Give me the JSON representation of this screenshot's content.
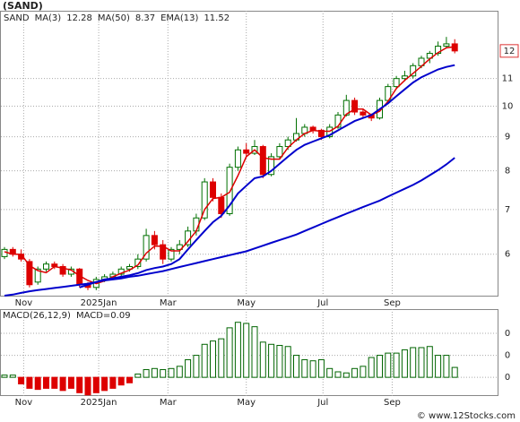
{
  "title": "(SAND)",
  "footer": "© www.12Stocks.com",
  "chart_data": [
    {
      "type": "candlestick",
      "log_scale": true,
      "grid": true,
      "ylim": [
        5.2,
        13.9
      ],
      "yticks": [
        6,
        7,
        8,
        9,
        10,
        11
      ],
      "price_tag": {
        "value": 12.1,
        "label": "12"
      },
      "categories": [
        null,
        null,
        null,
        null,
        null,
        null,
        null,
        null,
        null,
        null,
        null,
        null,
        null,
        null,
        null,
        null,
        null,
        null,
        null,
        null,
        null,
        null,
        null,
        null,
        null,
        null,
        null,
        null,
        null,
        null,
        null,
        null,
        null,
        null,
        null,
        null,
        null,
        null,
        null,
        null,
        null,
        null,
        null,
        null,
        null,
        null,
        null,
        null,
        null,
        null,
        null,
        null,
        null,
        null,
        null
      ],
      "xticks": [
        {
          "value": 2.3,
          "label": "Nov"
        },
        {
          "value": 11.3,
          "label": "2025Jan"
        },
        {
          "value": 19.6,
          "label": "Mar"
        },
        {
          "value": 29.0,
          "label": "May"
        },
        {
          "value": 38.2,
          "label": "Jul"
        },
        {
          "value": 46.5,
          "label": "Sep"
        }
      ],
      "candles": {
        "name": "SAND",
        "up_color": "#007000",
        "down_color": "#dd0000",
        "ohlc": [
          [
            5.95,
            6.15,
            5.9,
            6.1
          ],
          [
            6.1,
            6.15,
            5.95,
            6.0
          ],
          [
            6.0,
            6.1,
            5.85,
            5.9
          ],
          [
            5.85,
            5.9,
            5.35,
            5.4
          ],
          [
            5.45,
            5.75,
            5.4,
            5.7
          ],
          [
            5.7,
            5.85,
            5.65,
            5.8
          ],
          [
            5.8,
            5.85,
            5.7,
            5.75
          ],
          [
            5.75,
            5.8,
            5.55,
            5.6
          ],
          [
            5.6,
            5.75,
            5.55,
            5.7
          ],
          [
            5.7,
            5.72,
            5.35,
            5.4
          ],
          [
            5.4,
            5.45,
            5.3,
            5.35
          ],
          [
            5.35,
            5.55,
            5.3,
            5.5
          ],
          [
            5.5,
            5.6,
            5.45,
            5.55
          ],
          [
            5.55,
            5.65,
            5.5,
            5.6
          ],
          [
            5.6,
            5.75,
            5.55,
            5.7
          ],
          [
            5.7,
            5.8,
            5.65,
            5.75
          ],
          [
            5.75,
            6.0,
            5.7,
            5.9
          ],
          [
            5.9,
            6.55,
            5.85,
            6.4
          ],
          [
            6.4,
            6.5,
            6.1,
            6.2
          ],
          [
            6.2,
            6.3,
            5.8,
            5.9
          ],
          [
            5.9,
            6.15,
            5.85,
            6.1
          ],
          [
            6.1,
            6.3,
            6.0,
            6.2
          ],
          [
            6.2,
            6.6,
            6.15,
            6.5
          ],
          [
            6.5,
            6.9,
            6.4,
            6.8
          ],
          [
            6.8,
            7.8,
            6.75,
            7.7
          ],
          [
            7.7,
            7.8,
            7.2,
            7.3
          ],
          [
            7.3,
            7.4,
            6.8,
            6.9
          ],
          [
            6.9,
            8.2,
            6.85,
            8.1
          ],
          [
            8.1,
            8.7,
            8.0,
            8.6
          ],
          [
            8.6,
            8.8,
            8.4,
            8.5
          ],
          [
            8.5,
            8.9,
            8.45,
            8.7
          ],
          [
            8.7,
            8.75,
            7.8,
            7.9
          ],
          [
            7.9,
            8.5,
            7.85,
            8.4
          ],
          [
            8.4,
            8.8,
            8.35,
            8.7
          ],
          [
            8.7,
            9.0,
            8.6,
            8.9
          ],
          [
            8.9,
            9.6,
            8.85,
            9.1
          ],
          [
            9.1,
            9.4,
            9.0,
            9.3
          ],
          [
            9.3,
            9.35,
            9.1,
            9.2
          ],
          [
            9.2,
            9.25,
            8.9,
            9.0
          ],
          [
            9.0,
            9.4,
            8.95,
            9.3
          ],
          [
            9.3,
            9.8,
            9.25,
            9.7
          ],
          [
            9.7,
            10.4,
            9.65,
            10.2
          ],
          [
            10.2,
            10.3,
            9.7,
            9.8
          ],
          [
            9.8,
            9.9,
            9.6,
            9.7
          ],
          [
            9.7,
            9.75,
            9.5,
            9.6
          ],
          [
            9.6,
            10.3,
            9.55,
            10.2
          ],
          [
            10.2,
            10.8,
            10.1,
            10.7
          ],
          [
            10.7,
            11.1,
            10.6,
            11.0
          ],
          [
            11.0,
            11.3,
            10.9,
            11.1
          ],
          [
            11.1,
            11.6,
            11.0,
            11.5
          ],
          [
            11.5,
            11.9,
            11.4,
            11.8
          ],
          [
            11.8,
            12.1,
            11.6,
            12.0
          ],
          [
            12.0,
            12.5,
            11.9,
            12.3
          ],
          [
            12.3,
            12.7,
            12.2,
            12.4
          ],
          [
            12.4,
            12.6,
            12.0,
            12.1
          ]
        ]
      },
      "series": [
        {
          "name": "MA(3)",
          "color": "#dd0000",
          "width": 1.5,
          "values": [
            6.05,
            6.0,
            6.0,
            5.77,
            5.67,
            5.63,
            5.75,
            5.72,
            5.68,
            5.57,
            5.48,
            5.42,
            5.47,
            5.55,
            5.62,
            5.68,
            5.78,
            6.02,
            6.17,
            6.17,
            6.07,
            6.07,
            6.27,
            6.5,
            7.0,
            7.27,
            7.3,
            7.43,
            7.87,
            8.4,
            8.6,
            8.37,
            8.33,
            8.33,
            8.67,
            8.9,
            9.1,
            9.2,
            9.17,
            9.17,
            9.33,
            9.73,
            9.9,
            9.9,
            9.7,
            9.83,
            10.17,
            10.63,
            10.93,
            11.2,
            11.47,
            11.77,
            12.03,
            12.23,
            12.28
          ]
        },
        {
          "name": "MA(50)",
          "color": "#0000cc",
          "width": 2,
          "values": [
            5.2,
            5.22,
            5.25,
            5.28,
            5.3,
            5.32,
            5.34,
            5.36,
            5.38,
            5.4,
            5.42,
            5.45,
            5.48,
            5.5,
            5.52,
            5.55,
            5.57,
            5.6,
            5.63,
            5.66,
            5.7,
            5.74,
            5.78,
            5.82,
            5.86,
            5.9,
            5.94,
            5.98,
            6.02,
            6.06,
            6.12,
            6.18,
            6.24,
            6.3,
            6.36,
            6.42,
            6.5,
            6.58,
            6.66,
            6.74,
            6.82,
            6.9,
            6.98,
            7.06,
            7.14,
            7.22,
            7.32,
            7.42,
            7.52,
            7.62,
            7.74,
            7.88,
            8.02,
            8.18,
            8.37
          ]
        },
        {
          "name": "EMA(13)",
          "color": "#0000cc",
          "width": 2,
          "values": [
            null,
            null,
            null,
            null,
            null,
            null,
            null,
            null,
            null,
            5.35,
            5.4,
            5.45,
            5.5,
            5.52,
            5.55,
            5.58,
            5.62,
            5.68,
            5.72,
            5.75,
            5.8,
            5.9,
            6.1,
            6.3,
            6.5,
            6.7,
            6.85,
            7.1,
            7.4,
            7.6,
            7.8,
            7.85,
            8.0,
            8.2,
            8.4,
            8.6,
            8.75,
            8.85,
            8.95,
            9.05,
            9.2,
            9.35,
            9.5,
            9.6,
            9.7,
            9.9,
            10.1,
            10.35,
            10.6,
            10.85,
            11.05,
            11.2,
            11.35,
            11.45,
            11.52
          ]
        }
      ]
    },
    {
      "type": "bar",
      "title": "MACD(26,12,9)",
      "legend_text": "MACD=0.09",
      "grid": true,
      "ylim": [
        -0.17,
        0.62
      ],
      "yticks": [
        {
          "value": 0.4,
          "label": "0"
        },
        {
          "value": 0.2,
          "label": "0"
        },
        {
          "value": 0,
          "label": "0"
        }
      ],
      "pos_color": "#006400",
      "neg_color": "#dd0000",
      "xticks": [
        {
          "value": 2.3,
          "label": "Nov"
        },
        {
          "value": 11.3,
          "label": "2025Jan"
        },
        {
          "value": 19.6,
          "label": "Mar"
        },
        {
          "value": 29.0,
          "label": "May"
        },
        {
          "value": 38.2,
          "label": "Jul"
        },
        {
          "value": 46.5,
          "label": "Sep"
        }
      ],
      "values": [
        0.02,
        0.02,
        -0.06,
        -0.1,
        -0.11,
        -0.1,
        -0.1,
        -0.12,
        -0.1,
        -0.14,
        -0.16,
        -0.14,
        -0.12,
        -0.1,
        -0.07,
        -0.05,
        0.03,
        0.07,
        0.08,
        0.07,
        0.08,
        0.1,
        0.16,
        0.2,
        0.3,
        0.33,
        0.35,
        0.45,
        0.5,
        0.49,
        0.46,
        0.32,
        0.3,
        0.29,
        0.28,
        0.2,
        0.16,
        0.15,
        0.16,
        0.08,
        0.05,
        0.04,
        0.08,
        0.1,
        0.18,
        0.2,
        0.22,
        0.22,
        0.25,
        0.27,
        0.27,
        0.28,
        0.2,
        0.2,
        0.09
      ]
    }
  ]
}
